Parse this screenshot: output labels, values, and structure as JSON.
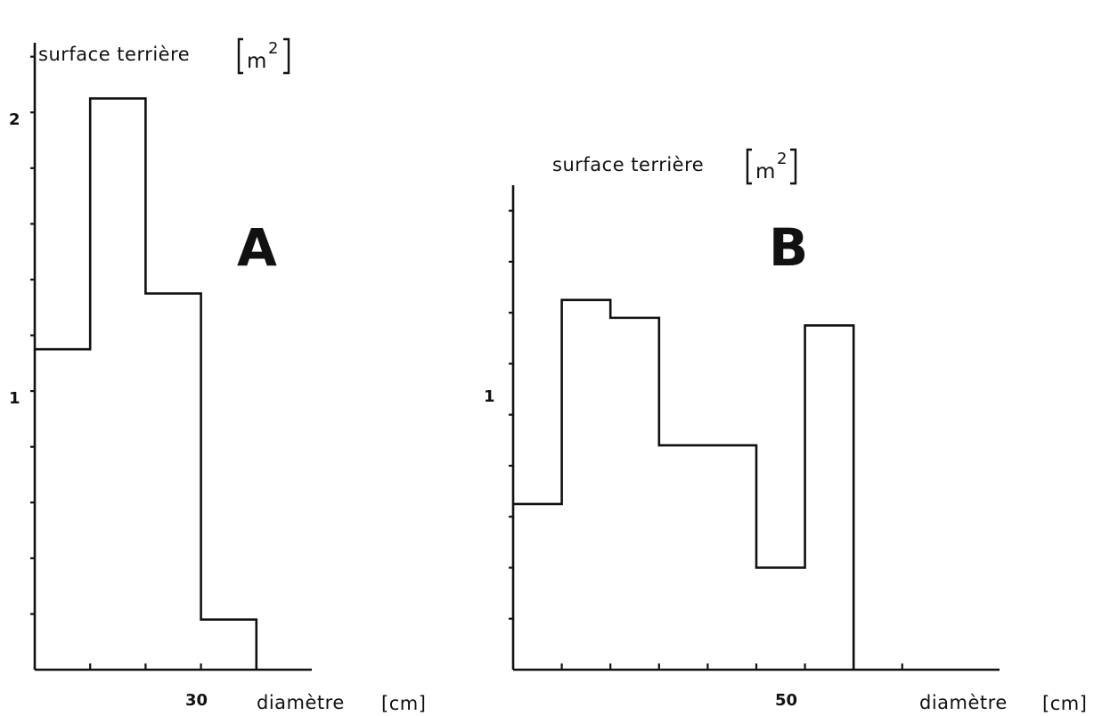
{
  "chart_data": [
    {
      "type": "bar",
      "panel_label": "A",
      "ylabel": "surface terrière",
      "ylabel_unit": "m",
      "ylabel_unit_exp": "2",
      "xlabel": "diamètre",
      "xlabel_unit": "[cm]",
      "y_tick_labels": [
        {
          "label": "1",
          "value": 1
        },
        {
          "label": "2",
          "value": 2
        }
      ],
      "x_tick_labels": [
        {
          "label": "30",
          "value": 30
        }
      ],
      "ylim": [
        0,
        2.25
      ],
      "xlim": [
        10,
        35
      ],
      "bin_edges": [
        10,
        15,
        20,
        25,
        30
      ],
      "values": [
        1.15,
        2.05,
        1.35,
        0.18
      ]
    },
    {
      "type": "bar",
      "panel_label": "B",
      "ylabel": "surface terrière",
      "ylabel_unit": "m",
      "ylabel_unit_exp": "2",
      "xlabel": "diamètre",
      "xlabel_unit": "[cm]",
      "y_tick_labels": [
        {
          "label": "1",
          "value": 1
        }
      ],
      "x_tick_labels": [
        {
          "label": "50",
          "value": 50
        }
      ],
      "ylim": [
        0,
        1.9
      ],
      "xlim": [
        15,
        65
      ],
      "bin_edges": [
        15,
        20,
        25,
        30,
        40,
        45,
        50
      ],
      "values": [
        0.65,
        1.45,
        1.38,
        0.88,
        0.4,
        1.35
      ]
    }
  ]
}
